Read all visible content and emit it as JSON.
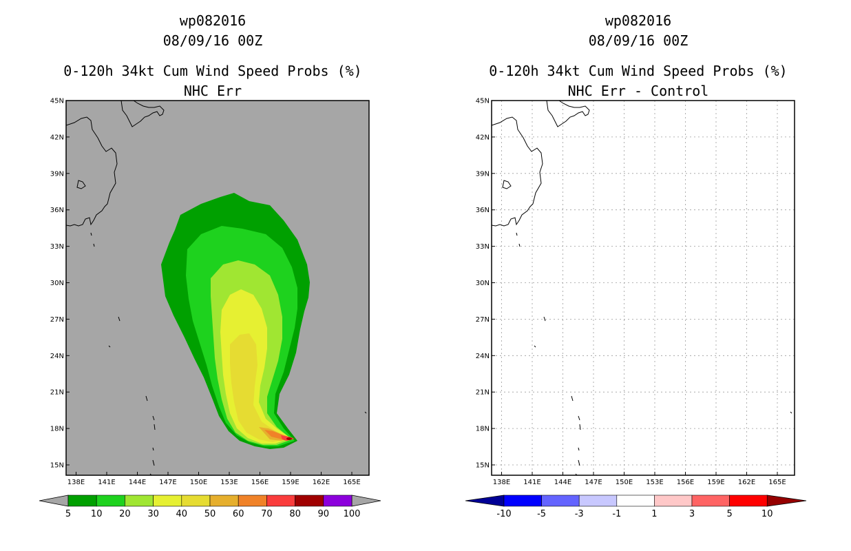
{
  "left_panel": {
    "storm_id": "wp082016",
    "datetime": "08/09/16 00Z",
    "product": "0-120h 34kt Cum Wind Speed Probs (%)",
    "subtitle": "NHC Err",
    "background_color": "#a6a6a6",
    "colorbar": {
      "labels": [
        "5",
        "10",
        "20",
        "30",
        "40",
        "50",
        "60",
        "70",
        "80",
        "90",
        "100"
      ],
      "colors": [
        "#00a000",
        "#1ed21e",
        "#a0e632",
        "#e6f032",
        "#e6dc32",
        "#e6af2d",
        "#f08228",
        "#fa3c3c",
        "#a00000",
        "#8c00dc"
      ],
      "end_color": "#a6a6a6"
    }
  },
  "right_panel": {
    "storm_id": "wp082016",
    "datetime": "08/09/16 00Z",
    "product": "0-120h 34kt Cum Wind Speed Probs (%)",
    "subtitle": "NHC Err - Control",
    "background_color": "#ffffff",
    "colorbar": {
      "labels": [
        "-10",
        "-5",
        "-3",
        "-1",
        "1",
        "3",
        "5",
        "10"
      ],
      "colors": [
        "#0000ff",
        "#6464ff",
        "#c8c8ff",
        "#ffffff",
        "#ffc8c8",
        "#ff6464",
        "#ff0000"
      ],
      "low_end_color": "#000096",
      "high_end_color": "#960000"
    }
  },
  "map": {
    "lat_labels": [
      "45N",
      "42N",
      "39N",
      "36N",
      "33N",
      "30N",
      "27N",
      "24N",
      "21N",
      "18N",
      "15N"
    ],
    "lon_labels": [
      "138E",
      "141E",
      "144E",
      "147E",
      "150E",
      "153E",
      "156E",
      "159E",
      "162E",
      "165E"
    ]
  }
}
